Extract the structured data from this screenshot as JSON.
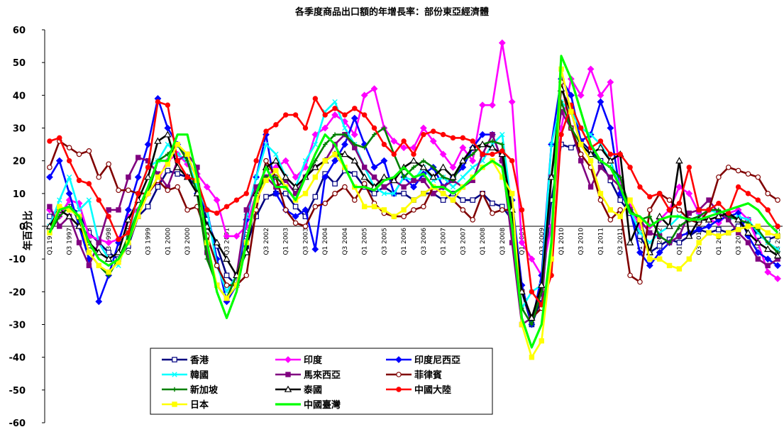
{
  "chart_data": {
    "type": "line",
    "title": "各季度商品出口額的年增長率：部份東亞經濟體",
    "ylabel": "年百分比",
    "xlabel": "",
    "ylim": [
      -60,
      60
    ],
    "yticks": [
      -60,
      -50,
      -40,
      -30,
      -20,
      -10,
      0,
      10,
      20,
      30,
      40,
      50,
      60
    ],
    "grid": false,
    "legend_position": "bottom-left inside",
    "x": [
      "Q1 1997",
      "Q2 1997",
      "Q3 1997",
      "Q4 1997",
      "Q1 1998",
      "Q2 1998",
      "Q3 1998",
      "Q4 1998",
      "Q1 1999",
      "Q2 1999",
      "Q3 1999",
      "Q4 1999",
      "Q1 2000",
      "Q2 2000",
      "Q3 2000",
      "Q4 2000",
      "Q1 2001",
      "Q2 2001",
      "Q3 2001",
      "Q4 2001",
      "Q1 2002",
      "Q2 2002",
      "Q3 2002",
      "Q4 2002",
      "Q1 2003",
      "Q2 2003",
      "Q3 2003",
      "Q4 2003",
      "Q1 2004",
      "Q2 2004",
      "Q3 2004",
      "Q4 2004",
      "Q1 2005",
      "Q2 2005",
      "Q3 2005",
      "Q4 2005",
      "Q1 2006",
      "Q2 2006",
      "Q3 2006",
      "Q4 2006",
      "Q1 2007",
      "Q2 2007",
      "Q3 2007",
      "Q4 2007",
      "Q1 2008",
      "Q2 2008",
      "Q3 2008",
      "Q4 2008",
      "Q1 2009",
      "Q2 2009",
      "Q3 2009",
      "Q4 2009",
      "Q1 2010",
      "Q2 2010",
      "Q3 2010",
      "Q4 2010",
      "Q1 2011",
      "Q2 2011",
      "Q3 2011",
      "Q4 2011",
      "Q1 2012",
      "Q2 2012",
      "Q3 2012",
      "Q4 2012",
      "Q1 2013",
      "Q2 2013",
      "Q3 2013",
      "Q4 2013",
      "Q1 2014",
      "Q2 2014",
      "Q3 2014",
      "Q4 2014",
      "Q1 2015",
      "Q2 2015",
      "Q3 2015"
    ],
    "x_tick_labels": [
      "Q1 1997",
      "Q3 1997",
      "Q1 1998",
      "Q3 1998",
      "Q1 1999",
      "Q3 1999",
      "Q1 2000",
      "Q3 2000",
      "Q1 2001",
      "Q3 2001",
      "Q1 2002",
      "Q3 2002",
      "Q1 2003",
      "Q3 2003",
      "Q1 2004",
      "Q3 2004",
      "Q1 2005",
      "Q3 2005",
      "Q1 2006",
      "Q3 2006",
      "Q1 2007",
      "Q3 2007",
      "Q1 2008",
      "Q3 2008",
      "Q1 2009",
      "Q3 2009",
      "Q1 2010",
      "Q3 2010",
      "Q1 2011",
      "Q3 2011",
      "Q1 2012",
      "Q3 2012",
      "Q1 2013",
      "Q3 2013",
      "Q1 2014",
      "Q3 2014",
      "Q1 2015",
      "Q3 2015"
    ],
    "series": [
      {
        "name": "香港",
        "color": "#000080",
        "marker": "square-open",
        "values": [
          3,
          5,
          6,
          4,
          -2,
          -5,
          -8,
          -10,
          -6,
          3,
          6,
          12,
          17,
          16,
          15,
          12,
          2,
          -6,
          -15,
          -18,
          -6,
          3,
          9,
          10,
          10,
          6,
          3,
          9,
          16,
          13,
          17,
          16,
          12,
          10,
          12,
          10,
          10,
          8,
          10,
          10,
          8,
          10,
          8,
          8,
          10,
          7,
          6,
          2,
          -20,
          -30,
          -22,
          8,
          25,
          24,
          26,
          23,
          20,
          14,
          8,
          4,
          -3,
          -8,
          -6,
          -4,
          -5,
          -3,
          -1,
          -2,
          -1,
          -2,
          0,
          2,
          -3,
          -4,
          -3
        ]
      },
      {
        "name": "印度",
        "color": "#ff00ff",
        "marker": "diamond",
        "values": [
          5,
          3,
          8,
          7,
          -3,
          -4,
          -5,
          -4,
          3,
          5,
          10,
          14,
          20,
          22,
          19,
          16,
          12,
          8,
          -3,
          -3,
          0,
          10,
          15,
          18,
          20,
          15,
          18,
          28,
          30,
          34,
          32,
          28,
          40,
          42,
          30,
          26,
          24,
          24,
          30,
          26,
          22,
          18,
          24,
          20,
          37,
          37,
          56,
          38,
          -5,
          -10,
          -15,
          0,
          30,
          45,
          40,
          48,
          40,
          44,
          14,
          6,
          0,
          0,
          2,
          5,
          12,
          10,
          4,
          2,
          1,
          4,
          5,
          2,
          -5,
          -14,
          -16
        ]
      },
      {
        "name": "印度尼西亞",
        "color": "#0000ff",
        "marker": "diamond",
        "values": [
          15,
          20,
          10,
          0,
          -10,
          -23,
          -15,
          -5,
          5,
          15,
          25,
          39,
          30,
          25,
          21,
          10,
          5,
          -10,
          -23,
          -18,
          2,
          15,
          28,
          10,
          5,
          3,
          5,
          -7,
          15,
          20,
          25,
          33,
          25,
          18,
          20,
          10,
          15,
          12,
          16,
          18,
          12,
          15,
          18,
          24,
          28,
          28,
          20,
          8,
          -18,
          -30,
          -15,
          25,
          45,
          40,
          26,
          28,
          38,
          30,
          10,
          5,
          -8,
          -12,
          -8,
          -5,
          -3,
          -2,
          -1,
          0,
          2,
          3,
          4,
          -3,
          -8,
          -10,
          -12
        ]
      },
      {
        "name": "韓國",
        "color": "#00ffff",
        "marker": "x",
        "values": [
          0,
          8,
          15,
          5,
          8,
          -5,
          -10,
          -12,
          -3,
          10,
          18,
          20,
          25,
          22,
          20,
          12,
          5,
          -12,
          -20,
          -15,
          3,
          15,
          25,
          22,
          15,
          12,
          20,
          25,
          35,
          38,
          30,
          25,
          18,
          12,
          10,
          10,
          15,
          14,
          18,
          14,
          15,
          12,
          15,
          18,
          20,
          25,
          28,
          5,
          -25,
          -20,
          -18,
          25,
          38,
          35,
          30,
          28,
          25,
          20,
          12,
          5,
          -2,
          -5,
          -2,
          0,
          3,
          2,
          3,
          5,
          4,
          2,
          3,
          2,
          -2,
          -5,
          -7
        ]
      },
      {
        "name": "馬來西亞",
        "color": "#800080",
        "marker": "square",
        "values": [
          6,
          0,
          3,
          -5,
          -12,
          -5,
          5,
          5,
          15,
          21,
          20,
          16,
          12,
          20,
          22,
          18,
          -8,
          -18,
          -22,
          -15,
          5,
          12,
          15,
          12,
          14,
          10,
          15,
          18,
          20,
          25,
          28,
          24,
          18,
          15,
          12,
          14,
          12,
          14,
          14,
          10,
          12,
          14,
          12,
          14,
          22,
          28,
          20,
          -5,
          -30,
          -28,
          -25,
          15,
          35,
          30,
          20,
          12,
          18,
          15,
          12,
          5,
          2,
          -2,
          -3,
          -5,
          -3,
          4,
          5,
          8,
          4,
          2,
          -2,
          -5,
          -10,
          -12,
          -10
        ]
      },
      {
        "name": "菲律賓",
        "color": "#800000",
        "marker": "circle-open",
        "values": [
          18,
          26,
          24,
          22,
          23,
          15,
          19,
          11,
          11,
          10,
          10,
          14,
          11,
          12,
          5,
          6,
          -3,
          -12,
          -18,
          -18,
          -15,
          5,
          20,
          15,
          5,
          1,
          0,
          6,
          7,
          10,
          12,
          8,
          13,
          7,
          4,
          3,
          3,
          5,
          6,
          12,
          10,
          8,
          5,
          2,
          10,
          4,
          5,
          5,
          -20,
          -28,
          -25,
          -10,
          44,
          30,
          22,
          18,
          8,
          2,
          5,
          -15,
          -17,
          5,
          10,
          8,
          5,
          2,
          1,
          5,
          15,
          18,
          17,
          16,
          15,
          10,
          8
        ]
      },
      {
        "name": "新加坡",
        "color": "#008000",
        "marker": "plus",
        "values": [
          -2,
          3,
          6,
          2,
          -8,
          -12,
          -15,
          -10,
          -3,
          5,
          10,
          20,
          22,
          25,
          20,
          10,
          -10,
          -18,
          -22,
          -15,
          -5,
          10,
          15,
          15,
          12,
          8,
          15,
          20,
          25,
          28,
          28,
          25,
          24,
          28,
          30,
          22,
          15,
          18,
          20,
          18,
          15,
          14,
          20,
          22,
          25,
          26,
          25,
          0,
          -25,
          -30,
          -20,
          15,
          38,
          30,
          25,
          22,
          20,
          18,
          15,
          5,
          2,
          3,
          -3,
          -5,
          0,
          2,
          3,
          5,
          5,
          3,
          2,
          1,
          -1,
          -5,
          -8
        ]
      },
      {
        "name": "泰國",
        "color": "#000000",
        "marker": "triangle-open",
        "values": [
          0,
          5,
          3,
          0,
          -5,
          -8,
          -10,
          -8,
          2,
          8,
          15,
          26,
          28,
          18,
          15,
          10,
          0,
          -5,
          -10,
          -15,
          -8,
          10,
          18,
          20,
          15,
          12,
          15,
          18,
          20,
          22,
          22,
          20,
          15,
          12,
          15,
          14,
          18,
          20,
          18,
          15,
          18,
          15,
          20,
          24,
          25,
          24,
          22,
          5,
          -20,
          -28,
          -18,
          15,
          42,
          35,
          25,
          22,
          24,
          20,
          22,
          -5,
          2,
          -8,
          3,
          0,
          20,
          -3,
          2,
          2,
          3,
          4,
          2,
          -2,
          -5,
          -7,
          -9
        ]
      },
      {
        "name": "中國大陸",
        "color": "#ff0000",
        "marker": "circle",
        "values": [
          26,
          27,
          20,
          14,
          13,
          8,
          3,
          -4,
          -2,
          10,
          18,
          38,
          37,
          20,
          15,
          14,
          5,
          4,
          6,
          8,
          10,
          20,
          29,
          31,
          34,
          34,
          30,
          39,
          34,
          36,
          34,
          36,
          34,
          30,
          25,
          22,
          26,
          22,
          28,
          29,
          28,
          27,
          27,
          26,
          22,
          22,
          23,
          20,
          5,
          -20,
          -24,
          -15,
          28,
          37,
          30,
          24,
          26,
          22,
          22,
          18,
          12,
          9,
          10,
          5,
          7,
          18,
          5,
          5,
          7,
          4,
          12,
          10,
          8,
          5,
          0
        ]
      },
      {
        "name": "日本",
        "color": "#ffff00",
        "marker": "square",
        "values": [
          -2,
          6,
          5,
          3,
          -8,
          -12,
          -14,
          -11,
          -5,
          3,
          10,
          15,
          19,
          25,
          22,
          14,
          -5,
          -18,
          -22,
          -18,
          -5,
          8,
          14,
          17,
          12,
          8,
          10,
          15,
          20,
          22,
          18,
          12,
          6,
          6,
          5,
          3,
          5,
          8,
          10,
          12,
          10,
          8,
          12,
          15,
          18,
          20,
          15,
          10,
          -30,
          -40,
          -35,
          -10,
          48,
          35,
          25,
          20,
          10,
          5,
          3,
          8,
          2,
          -10,
          -10,
          -12,
          -13,
          -10,
          -5,
          -2,
          -3,
          -2,
          -1,
          0,
          0,
          -2,
          -3
        ]
      },
      {
        "name": "中國臺灣",
        "color": "#00ff00",
        "marker": "none",
        "values": [
          -2,
          5,
          6,
          3,
          -5,
          -10,
          -12,
          -10,
          -5,
          5,
          12,
          20,
          20,
          28,
          28,
          15,
          -5,
          -20,
          -28,
          -20,
          -5,
          10,
          18,
          12,
          12,
          8,
          15,
          22,
          28,
          25,
          18,
          12,
          12,
          11,
          14,
          15,
          18,
          15,
          16,
          12,
          12,
          10,
          12,
          15,
          18,
          20,
          18,
          0,
          -28,
          -37,
          -30,
          -5,
          52,
          45,
          35,
          25,
          20,
          18,
          12,
          4,
          3,
          0,
          2,
          3,
          3,
          2,
          2,
          3,
          4,
          5,
          6,
          7,
          5,
          1,
          -2
        ]
      }
    ]
  }
}
